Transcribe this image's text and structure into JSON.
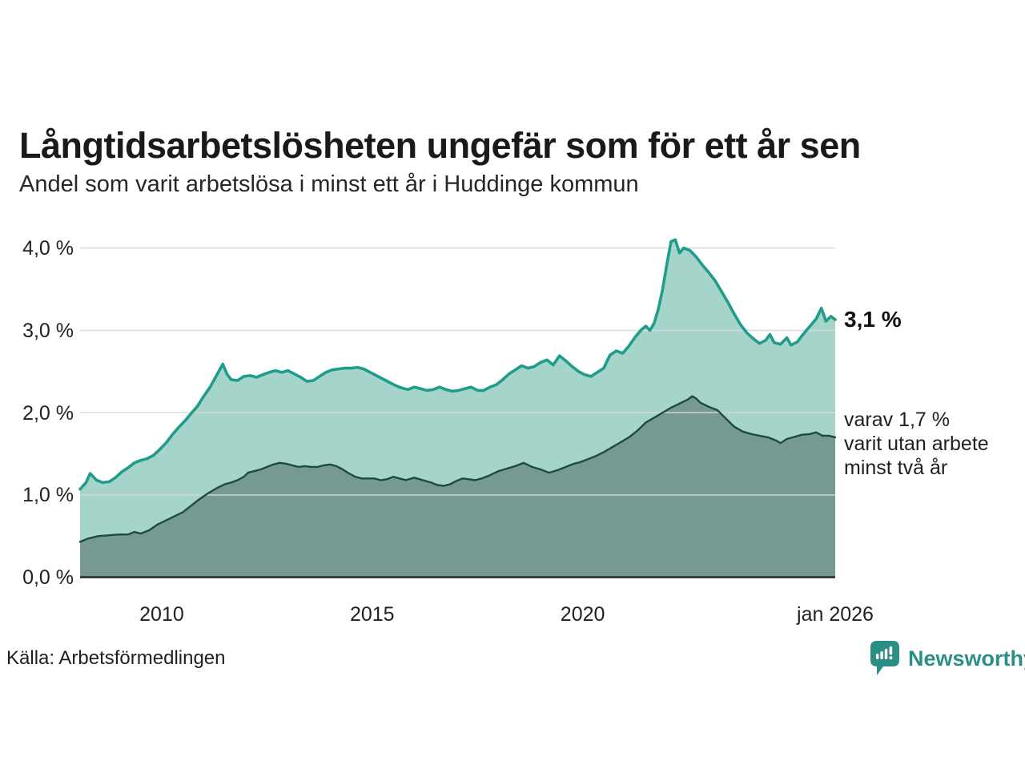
{
  "header": {
    "title": "Långtidsarbetslösheten ungefär som för ett år sen",
    "subtitle": "Andel som varit arbetslösa i minst ett år i Huddinge kommun"
  },
  "footer": {
    "source": "Källa: Arbetsförmedlingen",
    "brand": "Newsworthy"
  },
  "chart_data": {
    "type": "area",
    "title": "Långtidsarbetslösheten ungefär som för ett år sen",
    "subtitle": "Andel som varit arbetslösa i minst ett år i Huddinge kommun",
    "grid": true,
    "legend": "none",
    "colors": {
      "series1_line": "#1f9c8b",
      "series1_fill": "#a5d4cb",
      "series2_line": "#1d4a42",
      "series2_fill": "#769a92",
      "gridline": "#d7d7d7",
      "axis": "#2e2e2e",
      "brand_teal": "#2c8f85"
    },
    "x_axis": {
      "range": [
        2008.06,
        2026.0
      ],
      "ticks": [
        {
          "label": "2010",
          "year": 2010
        },
        {
          "label": "2015",
          "year": 2015
        },
        {
          "label": "2020",
          "year": 2020
        },
        {
          "label": "jan 2026",
          "year": 2026.0
        }
      ]
    },
    "y_axis": {
      "unit": "%",
      "range": [
        0,
        4.2
      ],
      "ticks": [
        {
          "label": "0,0 %",
          "value": 0
        },
        {
          "label": "1,0 %",
          "value": 1
        },
        {
          "label": "2,0 %",
          "value": 2
        },
        {
          "label": "3,0 %",
          "value": 3
        },
        {
          "label": "4,0 %",
          "value": 4
        }
      ]
    },
    "series": [
      {
        "name": "Andel som varit arbetslösa i minst ett år",
        "end_value": 3.1,
        "points": [
          [
            2008.06,
            1.07
          ],
          [
            2008.2,
            1.15
          ],
          [
            2008.3,
            1.26
          ],
          [
            2008.45,
            1.18
          ],
          [
            2008.6,
            1.15
          ],
          [
            2008.75,
            1.16
          ],
          [
            2008.9,
            1.21
          ],
          [
            2009.05,
            1.28
          ],
          [
            2009.2,
            1.33
          ],
          [
            2009.35,
            1.39
          ],
          [
            2009.5,
            1.42
          ],
          [
            2009.65,
            1.44
          ],
          [
            2009.8,
            1.48
          ],
          [
            2009.95,
            1.55
          ],
          [
            2010.1,
            1.63
          ],
          [
            2010.25,
            1.73
          ],
          [
            2010.4,
            1.82
          ],
          [
            2010.55,
            1.9
          ],
          [
            2010.7,
            1.99
          ],
          [
            2010.85,
            2.08
          ],
          [
            2011.0,
            2.2
          ],
          [
            2011.15,
            2.31
          ],
          [
            2011.3,
            2.45
          ],
          [
            2011.45,
            2.59
          ],
          [
            2011.55,
            2.47
          ],
          [
            2011.65,
            2.4
          ],
          [
            2011.8,
            2.39
          ],
          [
            2011.95,
            2.44
          ],
          [
            2012.1,
            2.45
          ],
          [
            2012.25,
            2.43
          ],
          [
            2012.4,
            2.46
          ],
          [
            2012.55,
            2.49
          ],
          [
            2012.7,
            2.51
          ],
          [
            2012.85,
            2.49
          ],
          [
            2013.0,
            2.51
          ],
          [
            2013.15,
            2.47
          ],
          [
            2013.3,
            2.43
          ],
          [
            2013.45,
            2.38
          ],
          [
            2013.6,
            2.39
          ],
          [
            2013.75,
            2.44
          ],
          [
            2013.9,
            2.49
          ],
          [
            2014.05,
            2.52
          ],
          [
            2014.2,
            2.53
          ],
          [
            2014.35,
            2.54
          ],
          [
            2014.5,
            2.54
          ],
          [
            2014.65,
            2.55
          ],
          [
            2014.8,
            2.53
          ],
          [
            2014.95,
            2.49
          ],
          [
            2015.1,
            2.45
          ],
          [
            2015.25,
            2.41
          ],
          [
            2015.4,
            2.37
          ],
          [
            2015.55,
            2.33
          ],
          [
            2015.7,
            2.3
          ],
          [
            2015.85,
            2.28
          ],
          [
            2016.0,
            2.31
          ],
          [
            2016.15,
            2.29
          ],
          [
            2016.3,
            2.27
          ],
          [
            2016.45,
            2.28
          ],
          [
            2016.6,
            2.31
          ],
          [
            2016.75,
            2.28
          ],
          [
            2016.9,
            2.26
          ],
          [
            2017.05,
            2.27
          ],
          [
            2017.2,
            2.29
          ],
          [
            2017.35,
            2.31
          ],
          [
            2017.5,
            2.27
          ],
          [
            2017.65,
            2.27
          ],
          [
            2017.8,
            2.31
          ],
          [
            2017.95,
            2.34
          ],
          [
            2018.1,
            2.4
          ],
          [
            2018.25,
            2.47
          ],
          [
            2018.4,
            2.52
          ],
          [
            2018.55,
            2.57
          ],
          [
            2018.7,
            2.54
          ],
          [
            2018.85,
            2.56
          ],
          [
            2019.0,
            2.61
          ],
          [
            2019.15,
            2.64
          ],
          [
            2019.3,
            2.58
          ],
          [
            2019.45,
            2.69
          ],
          [
            2019.6,
            2.63
          ],
          [
            2019.75,
            2.56
          ],
          [
            2019.9,
            2.5
          ],
          [
            2020.05,
            2.46
          ],
          [
            2020.2,
            2.44
          ],
          [
            2020.35,
            2.49
          ],
          [
            2020.5,
            2.54
          ],
          [
            2020.65,
            2.7
          ],
          [
            2020.8,
            2.75
          ],
          [
            2020.95,
            2.72
          ],
          [
            2021.1,
            2.81
          ],
          [
            2021.25,
            2.92
          ],
          [
            2021.4,
            3.01
          ],
          [
            2021.5,
            3.05
          ],
          [
            2021.6,
            3.0
          ],
          [
            2021.7,
            3.09
          ],
          [
            2021.8,
            3.26
          ],
          [
            2021.9,
            3.5
          ],
          [
            2022.0,
            3.8
          ],
          [
            2022.1,
            4.08
          ],
          [
            2022.2,
            4.1
          ],
          [
            2022.3,
            3.94
          ],
          [
            2022.4,
            4.0
          ],
          [
            2022.55,
            3.97
          ],
          [
            2022.7,
            3.89
          ],
          [
            2022.85,
            3.79
          ],
          [
            2023.0,
            3.7
          ],
          [
            2023.15,
            3.6
          ],
          [
            2023.3,
            3.47
          ],
          [
            2023.45,
            3.34
          ],
          [
            2023.6,
            3.2
          ],
          [
            2023.75,
            3.07
          ],
          [
            2023.9,
            2.97
          ],
          [
            2024.05,
            2.9
          ],
          [
            2024.2,
            2.84
          ],
          [
            2024.35,
            2.88
          ],
          [
            2024.45,
            2.95
          ],
          [
            2024.55,
            2.85
          ],
          [
            2024.7,
            2.83
          ],
          [
            2024.85,
            2.91
          ],
          [
            2024.95,
            2.82
          ],
          [
            2025.1,
            2.86
          ],
          [
            2025.25,
            2.96
          ],
          [
            2025.4,
            3.05
          ],
          [
            2025.55,
            3.14
          ],
          [
            2025.67,
            3.27
          ],
          [
            2025.78,
            3.11
          ],
          [
            2025.9,
            3.17
          ],
          [
            2026.0,
            3.13
          ]
        ]
      },
      {
        "name": "varav utan arbete minst två år",
        "end_value": 1.7,
        "points": [
          [
            2008.06,
            0.43
          ],
          [
            2008.25,
            0.47
          ],
          [
            2008.5,
            0.5
          ],
          [
            2008.75,
            0.51
          ],
          [
            2009.0,
            0.52
          ],
          [
            2009.2,
            0.52
          ],
          [
            2009.35,
            0.55
          ],
          [
            2009.5,
            0.53
          ],
          [
            2009.7,
            0.57
          ],
          [
            2009.9,
            0.64
          ],
          [
            2010.1,
            0.69
          ],
          [
            2010.3,
            0.74
          ],
          [
            2010.5,
            0.79
          ],
          [
            2010.7,
            0.87
          ],
          [
            2010.9,
            0.95
          ],
          [
            2011.1,
            1.02
          ],
          [
            2011.3,
            1.08
          ],
          [
            2011.5,
            1.13
          ],
          [
            2011.65,
            1.15
          ],
          [
            2011.8,
            1.18
          ],
          [
            2011.95,
            1.22
          ],
          [
            2012.05,
            1.27
          ],
          [
            2012.2,
            1.29
          ],
          [
            2012.35,
            1.31
          ],
          [
            2012.5,
            1.34
          ],
          [
            2012.65,
            1.37
          ],
          [
            2012.8,
            1.39
          ],
          [
            2012.95,
            1.38
          ],
          [
            2013.1,
            1.36
          ],
          [
            2013.25,
            1.34
          ],
          [
            2013.4,
            1.35
          ],
          [
            2013.55,
            1.34
          ],
          [
            2013.7,
            1.34
          ],
          [
            2013.85,
            1.36
          ],
          [
            2014.0,
            1.37
          ],
          [
            2014.15,
            1.35
          ],
          [
            2014.3,
            1.31
          ],
          [
            2014.45,
            1.26
          ],
          [
            2014.6,
            1.22
          ],
          [
            2014.75,
            1.2
          ],
          [
            2014.9,
            1.2
          ],
          [
            2015.05,
            1.2
          ],
          [
            2015.2,
            1.18
          ],
          [
            2015.35,
            1.19
          ],
          [
            2015.5,
            1.22
          ],
          [
            2015.65,
            1.2
          ],
          [
            2015.8,
            1.18
          ],
          [
            2016.0,
            1.21
          ],
          [
            2016.2,
            1.18
          ],
          [
            2016.4,
            1.15
          ],
          [
            2016.55,
            1.12
          ],
          [
            2016.7,
            1.11
          ],
          [
            2016.85,
            1.13
          ],
          [
            2017.0,
            1.17
          ],
          [
            2017.15,
            1.2
          ],
          [
            2017.3,
            1.19
          ],
          [
            2017.45,
            1.18
          ],
          [
            2017.6,
            1.2
          ],
          [
            2017.8,
            1.24
          ],
          [
            2018.0,
            1.29
          ],
          [
            2018.2,
            1.32
          ],
          [
            2018.4,
            1.35
          ],
          [
            2018.6,
            1.39
          ],
          [
            2018.8,
            1.34
          ],
          [
            2019.0,
            1.31
          ],
          [
            2019.2,
            1.27
          ],
          [
            2019.4,
            1.3
          ],
          [
            2019.6,
            1.34
          ],
          [
            2019.8,
            1.38
          ],
          [
            2019.95,
            1.4
          ],
          [
            2020.1,
            1.43
          ],
          [
            2020.3,
            1.47
          ],
          [
            2020.5,
            1.52
          ],
          [
            2020.7,
            1.58
          ],
          [
            2020.9,
            1.64
          ],
          [
            2021.1,
            1.7
          ],
          [
            2021.3,
            1.78
          ],
          [
            2021.5,
            1.88
          ],
          [
            2021.7,
            1.94
          ],
          [
            2021.9,
            2.0
          ],
          [
            2022.1,
            2.06
          ],
          [
            2022.3,
            2.11
          ],
          [
            2022.5,
            2.16
          ],
          [
            2022.6,
            2.2
          ],
          [
            2022.7,
            2.17
          ],
          [
            2022.8,
            2.12
          ],
          [
            2023.0,
            2.07
          ],
          [
            2023.2,
            2.03
          ],
          [
            2023.4,
            1.93
          ],
          [
            2023.6,
            1.83
          ],
          [
            2023.8,
            1.77
          ],
          [
            2024.0,
            1.74
          ],
          [
            2024.2,
            1.72
          ],
          [
            2024.4,
            1.7
          ],
          [
            2024.6,
            1.66
          ],
          [
            2024.7,
            1.63
          ],
          [
            2024.85,
            1.68
          ],
          [
            2025.0,
            1.7
          ],
          [
            2025.2,
            1.73
          ],
          [
            2025.4,
            1.74
          ],
          [
            2025.55,
            1.76
          ],
          [
            2025.7,
            1.72
          ],
          [
            2025.85,
            1.72
          ],
          [
            2026.0,
            1.7
          ]
        ]
      }
    ],
    "annotations": {
      "end_value_label": "3,1 %",
      "series2_label_lines": [
        "varav 1,7 %",
        "varit utan arbete",
        "minst två år"
      ]
    }
  }
}
